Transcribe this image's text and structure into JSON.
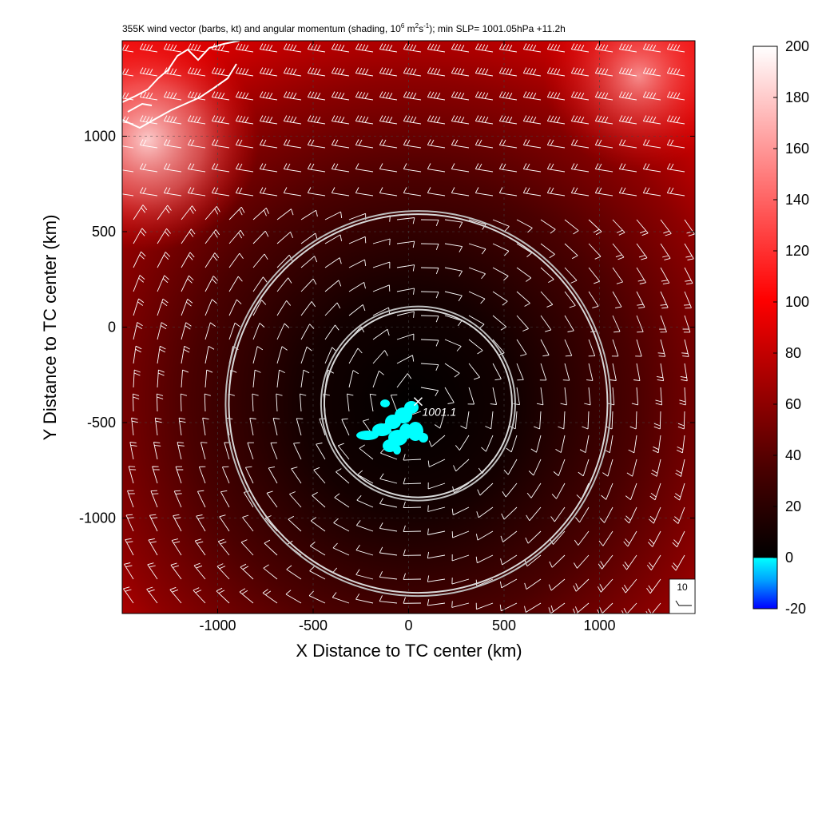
{
  "chart_data": {
    "type": "heatmap",
    "title": "355K wind vector (barbs, kt) and angular momentum (shading, 10",
    "title_exp1": "6",
    "title_mid1": " m",
    "title_exp2": "2",
    "title_mid2": "s",
    "title_exp3": "-1",
    "title_tail": "); min SLP= 1001.05hPa  +11.2h",
    "xlabel": "X Distance to TC center (km)",
    "ylabel": "Y Distance to TC center (km)",
    "xlim": [
      -1500,
      1500
    ],
    "ylim": [
      -1500,
      1500
    ],
    "xticks": [
      -1000,
      -500,
      0,
      500,
      1000
    ],
    "yticks": [
      -1000,
      -500,
      0,
      500,
      1000
    ],
    "grid": true,
    "colorbar": {
      "range": [
        -20,
        200
      ],
      "ticks": [
        -20,
        0,
        20,
        40,
        60,
        80,
        100,
        120,
        140,
        160,
        180,
        200
      ]
    },
    "circles": [
      {
        "center_x": 50,
        "center_y": -400,
        "radius_km": 500
      },
      {
        "center_x": 50,
        "center_y": -400,
        "radius_km": 1000
      }
    ],
    "min_slp_marker": {
      "x": 50,
      "y": -390,
      "label": "1001.1"
    },
    "reference_barb_label": "10"
  }
}
